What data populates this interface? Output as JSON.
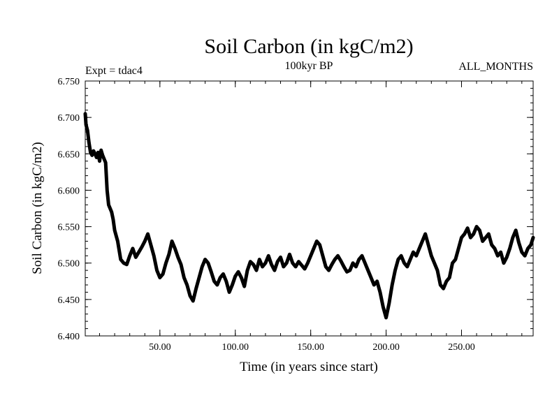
{
  "chart_data": {
    "type": "line",
    "title": "Soil Carbon (in kgC/m2)",
    "subtitle": "100kyr BP",
    "experiment_label": "Expt = tdac4",
    "period_label": "ALL_MONTHS",
    "xlabel": "Time (in years since start)",
    "ylabel": "Soil Carbon (in kgC/m2)",
    "xlim": [
      0.5,
      297.5
    ],
    "ylim": [
      6.4,
      6.75
    ],
    "x_ticks": [
      50,
      100,
      150,
      200,
      250
    ],
    "x_tick_labels": [
      "50.00",
      "100.00",
      "150.00",
      "200.00",
      "250.00"
    ],
    "y_ticks": [
      6.4,
      6.45,
      6.5,
      6.55,
      6.6,
      6.65,
      6.7,
      6.75
    ],
    "y_tick_labels": [
      "6.400",
      "6.450",
      "6.500",
      "6.550",
      "6.600",
      "6.650",
      "6.700",
      "6.750"
    ],
    "grid": false,
    "series": [
      {
        "name": "Soil Carbon",
        "color": "#000000",
        "x": [
          0.5,
          1,
          2,
          3,
          4,
          5,
          6,
          7,
          8,
          9,
          10,
          11,
          12,
          13,
          14,
          15,
          16,
          17,
          18,
          19,
          20,
          22,
          24,
          26,
          28,
          30,
          32,
          34,
          36,
          38,
          40,
          42,
          44,
          46,
          48,
          50,
          52,
          54,
          56,
          58,
          60,
          62,
          64,
          66,
          68,
          70,
          72,
          74,
          76,
          78,
          80,
          82,
          84,
          86,
          88,
          90,
          92,
          94,
          96,
          98,
          100,
          102,
          104,
          106,
          108,
          110,
          112,
          114,
          116,
          118,
          120,
          122,
          124,
          126,
          128,
          130,
          132,
          134,
          136,
          138,
          140,
          142,
          144,
          146,
          148,
          150,
          152,
          154,
          156,
          158,
          160,
          162,
          164,
          166,
          168,
          170,
          172,
          174,
          176,
          178,
          180,
          182,
          184,
          186,
          188,
          190,
          192,
          194,
          196,
          198,
          200,
          202,
          204,
          206,
          208,
          210,
          212,
          214,
          216,
          218,
          220,
          222,
          224,
          226,
          228,
          230,
          232,
          234,
          236,
          238,
          240,
          242,
          244,
          246,
          248,
          250,
          252,
          254,
          256,
          258,
          260,
          262,
          264,
          266,
          268,
          270,
          272,
          274,
          276,
          278,
          280,
          282,
          284,
          286,
          288,
          290,
          292,
          294,
          296,
          297.5
        ],
        "values": [
          6.705,
          6.69,
          6.682,
          6.665,
          6.652,
          6.648,
          6.654,
          6.65,
          6.645,
          6.652,
          6.64,
          6.655,
          6.648,
          6.643,
          6.638,
          6.6,
          6.58,
          6.575,
          6.57,
          6.56,
          6.545,
          6.53,
          6.505,
          6.5,
          6.498,
          6.51,
          6.52,
          6.508,
          6.515,
          6.522,
          6.53,
          6.54,
          6.525,
          6.51,
          6.49,
          6.48,
          6.485,
          6.5,
          6.512,
          6.53,
          6.52,
          6.508,
          6.498,
          6.48,
          6.47,
          6.455,
          6.448,
          6.465,
          6.48,
          6.495,
          6.505,
          6.5,
          6.488,
          6.475,
          6.47,
          6.48,
          6.485,
          6.475,
          6.46,
          6.47,
          6.482,
          6.488,
          6.48,
          6.468,
          6.49,
          6.502,
          6.498,
          6.49,
          6.505,
          6.495,
          6.5,
          6.51,
          6.498,
          6.49,
          6.502,
          6.508,
          6.495,
          6.5,
          6.512,
          6.5,
          6.495,
          6.502,
          6.497,
          6.492,
          6.5,
          6.51,
          6.52,
          6.53,
          6.525,
          6.51,
          6.495,
          6.49,
          6.498,
          6.505,
          6.51,
          6.503,
          6.495,
          6.488,
          6.49,
          6.5,
          6.495,
          6.505,
          6.51,
          6.5,
          6.49,
          6.48,
          6.47,
          6.475,
          6.46,
          6.44,
          6.425,
          6.445,
          6.47,
          6.49,
          6.505,
          6.51,
          6.5,
          6.495,
          6.505,
          6.515,
          6.51,
          6.52,
          6.53,
          6.54,
          6.525,
          6.51,
          6.5,
          6.49,
          6.47,
          6.465,
          6.475,
          6.48,
          6.5,
          6.505,
          6.52,
          6.535,
          6.54,
          6.548,
          6.535,
          6.54,
          6.55,
          6.545,
          6.53,
          6.535,
          6.54,
          6.525,
          6.52,
          6.51,
          6.515,
          6.5,
          6.508,
          6.52,
          6.535,
          6.545,
          6.528,
          6.515,
          6.51,
          6.52,
          6.525,
          6.535
        ]
      }
    ]
  }
}
